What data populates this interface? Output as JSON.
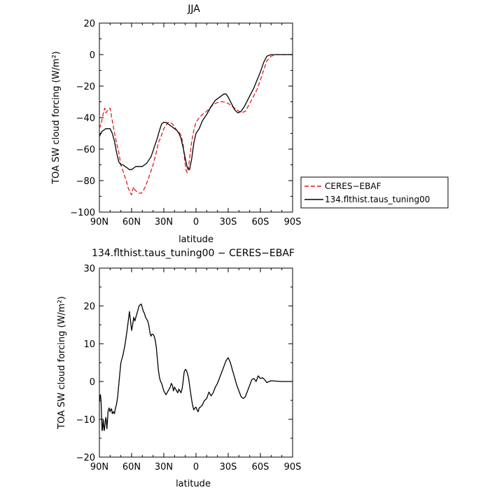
{
  "chart_data": [
    {
      "type": "line",
      "title": "JJA",
      "xlabel": "latitude",
      "ylabel": "TOA SW cloud forcing (W/m²)",
      "xlim": [
        90,
        -90
      ],
      "ylim": [
        -100,
        20
      ],
      "x_ticks": [
        90,
        60,
        30,
        0,
        -30,
        -60,
        -90
      ],
      "x_tick_labels": [
        "90N",
        "60N",
        "30N",
        "0",
        "30S",
        "60S",
        "90S"
      ],
      "y_ticks": [
        -100,
        -80,
        -60,
        -40,
        -20,
        0,
        20
      ],
      "y_tick_labels": [
        "−100",
        "−80",
        "−60",
        "−40",
        "−20",
        "0",
        "20"
      ],
      "legend_position": "right",
      "series": [
        {
          "name": "CERES−EBAF",
          "color": "#e8191c",
          "dash": "dashed",
          "x": [
            90,
            88,
            86,
            85,
            84,
            82,
            80,
            78,
            75,
            72,
            70,
            67,
            65,
            63,
            61,
            60,
            59,
            58,
            57,
            55,
            53,
            51,
            50,
            48,
            45,
            42,
            40,
            37,
            35,
            32,
            30,
            28,
            26,
            24,
            22,
            20,
            18,
            16,
            14,
            12,
            11,
            10,
            9,
            8,
            7,
            6,
            4,
            2,
            0,
            -3,
            -6,
            -10,
            -14,
            -18,
            -22,
            -26,
            -30,
            -34,
            -38,
            -42,
            -46,
            -50,
            -54,
            -57,
            -60,
            -63,
            -66,
            -70,
            -75,
            -80,
            -85,
            -90
          ],
          "y": [
            -47,
            -43,
            -36,
            -34,
            -37,
            -35,
            -34,
            -42,
            -53,
            -62,
            -70,
            -76,
            -80,
            -85,
            -88,
            -89,
            -86,
            -84,
            -86,
            -87,
            -88,
            -88,
            -87,
            -85,
            -80,
            -74,
            -70,
            -62,
            -56,
            -51,
            -47,
            -45,
            -43,
            -43,
            -44,
            -46,
            -48,
            -49,
            -51,
            -57,
            -64,
            -70,
            -74,
            -75,
            -72,
            -66,
            -55,
            -48,
            -43,
            -40,
            -38,
            -36,
            -33,
            -31,
            -30,
            -30,
            -31,
            -33,
            -35,
            -37,
            -36,
            -31,
            -26,
            -22,
            -16,
            -10,
            -4,
            -1,
            0,
            0,
            0,
            0
          ]
        },
        {
          "name": "134.flthist.taus_tuning00",
          "color": "#000000",
          "dash": "solid",
          "x": [
            90,
            88,
            86,
            84,
            82,
            80,
            78,
            76,
            74,
            72,
            70,
            68,
            66,
            64,
            62,
            60,
            58,
            56,
            54,
            52,
            50,
            48,
            46,
            44,
            42,
            40,
            38,
            36,
            34,
            32,
            30,
            28,
            26,
            24,
            22,
            20,
            18,
            16,
            14,
            12,
            10,
            8,
            6,
            4,
            2,
            0,
            -3,
            -6,
            -10,
            -14,
            -18,
            -22,
            -26,
            -28,
            -30,
            -33,
            -36,
            -39,
            -42,
            -45,
            -48,
            -51,
            -54,
            -57,
            -60,
            -63,
            -66,
            -70,
            -75,
            -80,
            -85,
            -90
          ],
          "y": [
            -52,
            -49,
            -48,
            -47,
            -47,
            -47,
            -50,
            -55,
            -62,
            -68,
            -70,
            -70,
            -71,
            -72,
            -73,
            -73,
            -72,
            -71,
            -71,
            -71,
            -71,
            -70,
            -69,
            -67,
            -65,
            -61,
            -57,
            -53,
            -48,
            -44,
            -43,
            -43,
            -44,
            -45,
            -46,
            -47,
            -48,
            -50,
            -53,
            -59,
            -66,
            -72,
            -73,
            -66,
            -56,
            -50,
            -47,
            -42,
            -38,
            -33,
            -29,
            -27,
            -25,
            -25,
            -27,
            -31,
            -35,
            -37,
            -36,
            -33,
            -29,
            -25,
            -21,
            -16,
            -11,
            -5,
            -1,
            0,
            0,
            0,
            0,
            0
          ]
        }
      ]
    },
    {
      "type": "line",
      "title": "134.flthist.taus_tuning00 − CERES−EBAF",
      "xlabel": "latitude",
      "ylabel": "TOA SW cloud forcing (W/m²)",
      "xlim": [
        90,
        -90
      ],
      "ylim": [
        -20,
        30
      ],
      "x_ticks": [
        90,
        60,
        30,
        0,
        -30,
        -60,
        -90
      ],
      "x_tick_labels": [
        "90N",
        "60N",
        "30N",
        "0",
        "30S",
        "60S",
        "90S"
      ],
      "y_ticks": [
        -20,
        -10,
        0,
        10,
        20,
        30
      ],
      "y_tick_labels": [
        "−20",
        "−10",
        "0",
        "10",
        "20",
        "30"
      ],
      "series": [
        {
          "color": "#000000",
          "dash": "solid",
          "x": [
            90,
            89.5,
            89,
            88.5,
            88,
            87.5,
            87,
            86.5,
            86,
            85.5,
            85,
            84.5,
            84,
            83.5,
            83,
            82.5,
            82,
            81.5,
            81,
            80.5,
            80,
            79.5,
            79,
            78.5,
            78,
            77,
            76,
            75,
            74,
            73,
            72,
            71,
            70,
            68,
            66,
            64,
            62,
            61,
            60,
            59,
            58,
            57,
            56,
            55,
            54,
            53,
            52,
            51,
            50,
            49,
            48,
            47,
            46,
            45,
            44,
            43,
            42,
            41,
            40,
            39,
            38,
            37,
            36,
            35,
            34,
            33,
            32,
            31,
            30,
            29,
            28,
            27,
            26,
            25,
            24,
            23,
            22,
            21,
            20,
            19,
            18,
            17,
            16,
            15,
            14,
            13,
            12,
            11,
            10,
            9,
            8,
            7,
            6,
            5,
            4,
            3,
            2,
            1,
            0,
            -1,
            -2,
            -3,
            -4,
            -5,
            -6,
            -7,
            -8,
            -10,
            -12,
            -14,
            -16,
            -18,
            -20,
            -22,
            -24,
            -26,
            -28,
            -30,
            -32,
            -34,
            -36,
            -38,
            -40,
            -42,
            -44,
            -46,
            -48,
            -50,
            -52,
            -54,
            -56,
            -58,
            -60,
            -62,
            -64,
            -66,
            -68,
            -70,
            -75,
            -80,
            -85,
            -90
          ],
          "y": [
            -5.5,
            -4,
            -3.5,
            -5,
            -9,
            -13,
            -12.5,
            -10,
            -11.5,
            -13,
            -12,
            -10.5,
            -9.5,
            -10.5,
            -12.5,
            -10.5,
            -8,
            -7.5,
            -7,
            -7.5,
            -8,
            -7.5,
            -7.2,
            -7.5,
            -8.5,
            -8,
            -8.5,
            -7,
            -6,
            -4,
            -1,
            2,
            5,
            7,
            10,
            14,
            18.5,
            16,
            13.5,
            15,
            17,
            16,
            17,
            18,
            19,
            20,
            20.3,
            20.5,
            19.5,
            18.5,
            18,
            17,
            16.5,
            16,
            15,
            13,
            12,
            12.5,
            12.5,
            12,
            11,
            9,
            6,
            3,
            1,
            0,
            -0.5,
            -1.5,
            -2.5,
            -3,
            -3.5,
            -3,
            -2.5,
            -2,
            -1.5,
            -0.5,
            -1,
            -2.5,
            -1.5,
            -2,
            -2.5,
            -3,
            -2,
            -2.5,
            -3,
            -2,
            0,
            2.5,
            3.2,
            3,
            2.2,
            1,
            -1,
            -3,
            -5,
            -6.5,
            -7.5,
            -7,
            -6.8,
            -7.5,
            -8,
            -7,
            -6.8,
            -6.5,
            -6.2,
            -5.5,
            -5,
            -4.5,
            -2.8,
            -3.8,
            -3,
            -1.5,
            -0.5,
            1,
            2.5,
            4,
            5.5,
            6.3,
            5,
            3,
            1,
            -1,
            -2.5,
            -4,
            -4.5,
            -4,
            -2.5,
            -1,
            0.5,
            0.8,
            0,
            1.5,
            0.8,
            1,
            0.5,
            -0.3,
            0,
            0.2,
            0.1,
            0,
            0,
            0
          ]
        }
      ]
    }
  ]
}
